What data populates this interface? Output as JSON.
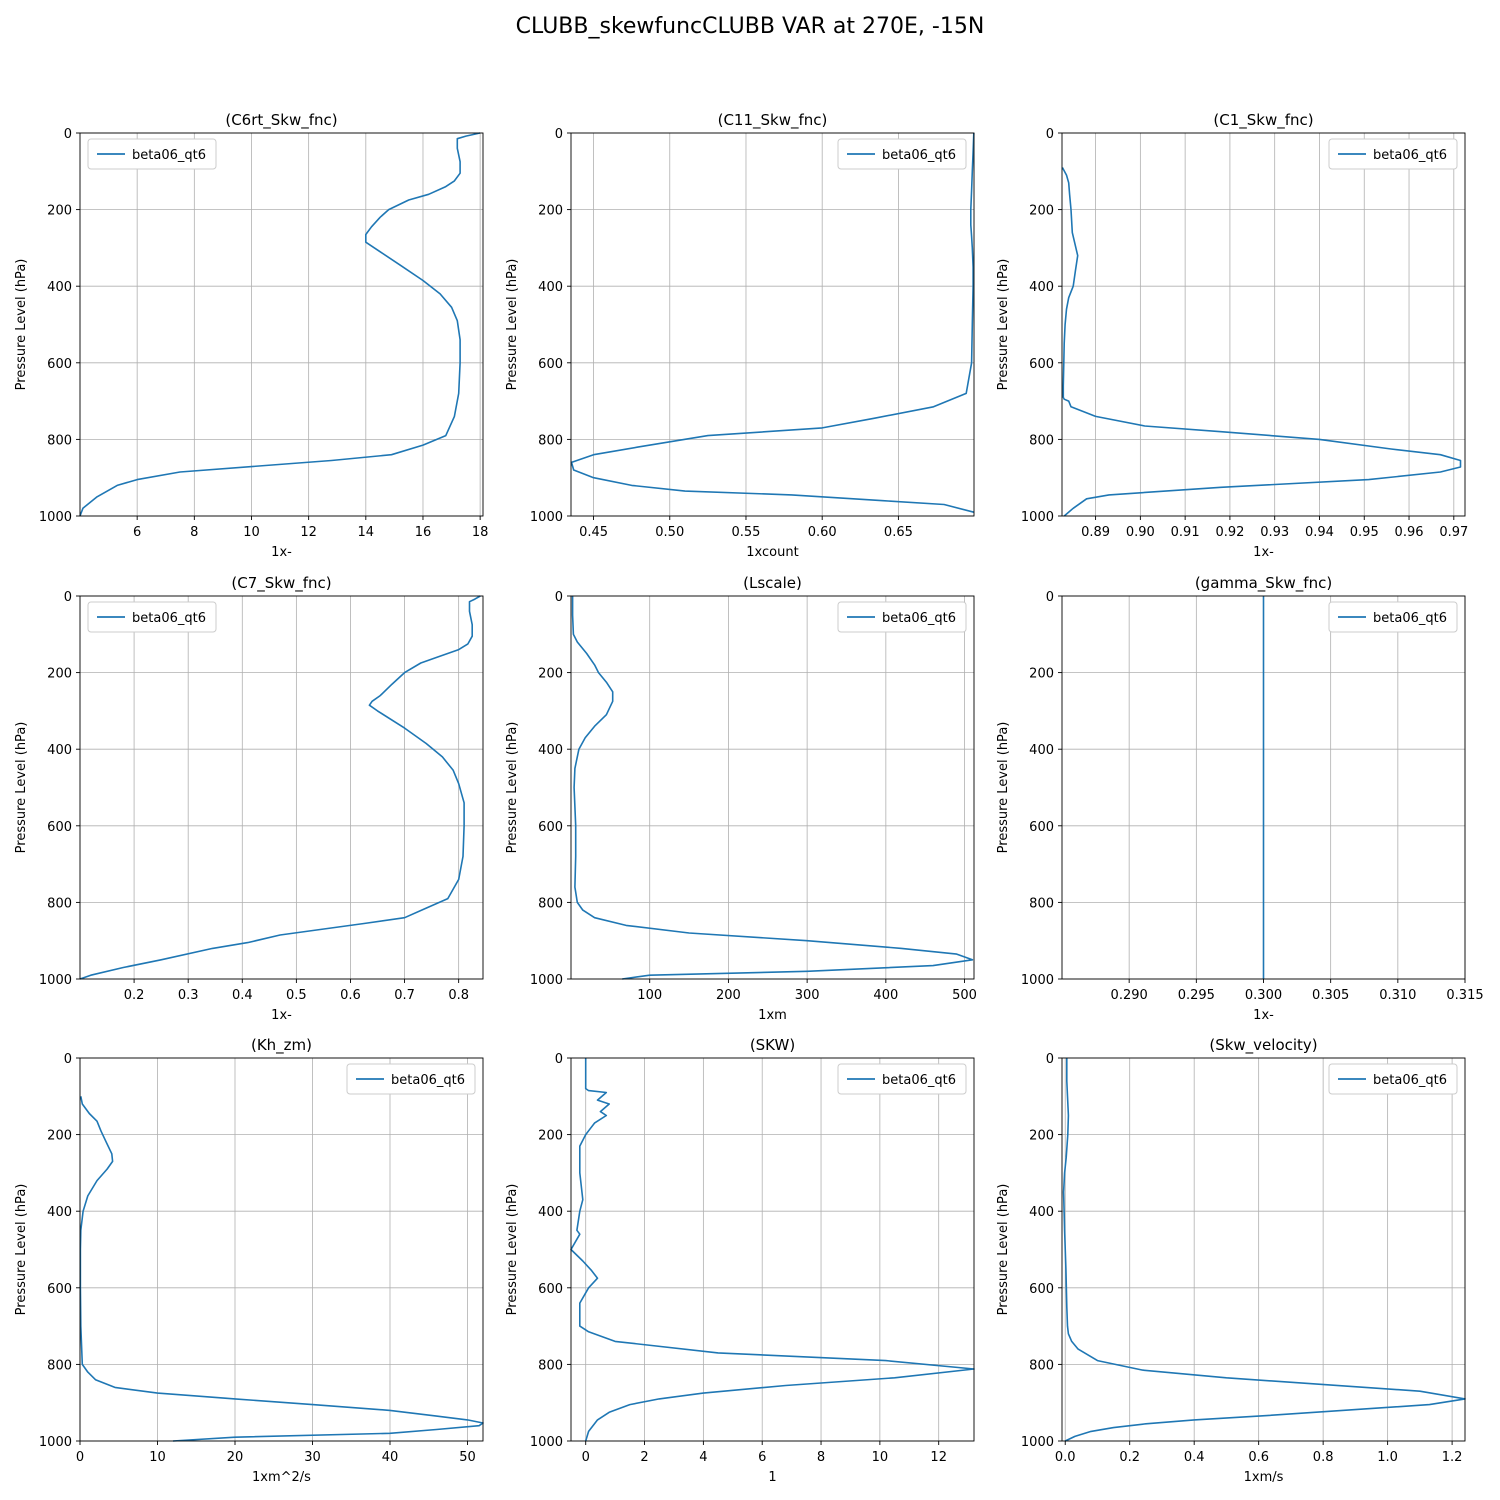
{
  "figure": {
    "title": "CLUBB_skewfuncCLUBB VAR at 270E, -15N"
  },
  "chart_data": [
    {
      "type": "line",
      "title": "(C6rt_Skw_fnc)",
      "xlabel": "1x-",
      "ylabel": "Pressure Level (hPa)",
      "xlim": [
        4.0,
        18.1
      ],
      "xticks": [
        6,
        8,
        10,
        12,
        14,
        16,
        18
      ],
      "xtick_labels": [
        "6",
        "8",
        "10",
        "12",
        "14",
        "16",
        "18"
      ],
      "ylim": [
        1000,
        0
      ],
      "yticks": [
        0,
        200,
        400,
        600,
        800,
        1000
      ],
      "ytick_labels": [
        "0",
        "200",
        "400",
        "600",
        "800",
        "1000"
      ],
      "grid": true,
      "legend": "upper left",
      "series": [
        {
          "name": "beta06_qt6",
          "color": "#1f77b4",
          "x": [
            18.0,
            17.5,
            17.2,
            17.2,
            17.3,
            17.3,
            17.1,
            16.8,
            16.2,
            15.5,
            14.8,
            14.5,
            14.2,
            14.0,
            14.0,
            14.3,
            15.2,
            16.0,
            16.6,
            17.0,
            17.2,
            17.3,
            17.3,
            17.25,
            17.1,
            16.8,
            16.0,
            14.9,
            12.8,
            7.5,
            6.0,
            5.3,
            4.6,
            4.1,
            4.0
          ],
          "y": [
            0,
            8,
            15,
            40,
            75,
            105,
            125,
            140,
            160,
            175,
            200,
            220,
            245,
            265,
            285,
            300,
            345,
            385,
            420,
            455,
            490,
            540,
            600,
            680,
            740,
            790,
            815,
            840,
            855,
            885,
            905,
            920,
            950,
            980,
            1000
          ]
        }
      ]
    },
    {
      "type": "line",
      "title": "(C11_Skw_fnc)",
      "xlabel": "1xcount",
      "ylabel": "Pressure Level (hPa)",
      "xlim": [
        0.4352,
        0.6996
      ],
      "xticks": [
        0.45,
        0.5,
        0.55,
        0.6,
        0.65
      ],
      "xtick_labels": [
        "0.45",
        "0.50",
        "0.55",
        "0.60",
        "0.65"
      ],
      "ylim": [
        1000,
        0
      ],
      "yticks": [
        0,
        200,
        400,
        600,
        800,
        1000
      ],
      "ytick_labels": [
        "0",
        "200",
        "400",
        "600",
        "800",
        "1000"
      ],
      "grid": true,
      "legend": "upper right",
      "series": [
        {
          "name": "beta06_qt6",
          "color": "#1f77b4",
          "x": [
            0.6995,
            0.699,
            0.6985,
            0.698,
            0.6975,
            0.6975,
            0.698,
            0.6985,
            0.699,
            0.699,
            0.6985,
            0.698,
            0.6945,
            0.673,
            0.634,
            0.6,
            0.525,
            0.479,
            0.45,
            0.4355,
            0.437,
            0.45,
            0.475,
            0.51,
            0.58,
            0.64,
            0.68,
            0.6995
          ],
          "y": [
            0,
            50,
            100,
            150,
            200,
            240,
            270,
            300,
            350,
            400,
            500,
            600,
            680,
            715,
            745,
            770,
            790,
            820,
            840,
            860,
            880,
            900,
            920,
            935,
            945,
            960,
            970,
            990
          ]
        }
      ]
    },
    {
      "type": "line",
      "title": "(C1_Skw_fnc)",
      "xlabel": "1x-",
      "ylabel": "Pressure Level (hPa)",
      "xlim": [
        0.8825,
        0.9725
      ],
      "xticks": [
        0.89,
        0.9,
        0.91,
        0.92,
        0.93,
        0.94,
        0.95,
        0.96,
        0.97
      ],
      "xtick_labels": [
        "0.89",
        "0.90",
        "0.91",
        "0.92",
        "0.93",
        "0.94",
        "0.95",
        "0.96",
        "0.97"
      ],
      "ylim": [
        1000,
        0
      ],
      "yticks": [
        0,
        200,
        400,
        600,
        800,
        1000
      ],
      "ytick_labels": [
        "0",
        "200",
        "400",
        "600",
        "800",
        "1000"
      ],
      "grid": true,
      "legend": "upper right",
      "series": [
        {
          "name": "beta06_qt6",
          "color": "#1f77b4",
          "x": [
            0.8826,
            0.8835,
            0.884,
            0.8842,
            0.8845,
            0.8848,
            0.886,
            0.8855,
            0.885,
            0.884,
            0.8835,
            0.8832,
            0.883,
            0.8829,
            0.8828,
            0.8828,
            0.8828,
            0.883,
            0.884,
            0.8845,
            0.89,
            0.901,
            0.918,
            0.94,
            0.956,
            0.967,
            0.9715,
            0.9715,
            0.967,
            0.951,
            0.918,
            0.893,
            0.888,
            0.885,
            0.883
          ],
          "y": [
            90,
            110,
            130,
            160,
            200,
            260,
            320,
            360,
            400,
            430,
            460,
            500,
            550,
            600,
            660,
            680,
            690,
            695,
            700,
            715,
            740,
            765,
            780,
            800,
            825,
            840,
            855,
            872,
            885,
            905,
            925,
            945,
            955,
            980,
            1000
          ]
        }
      ]
    },
    {
      "type": "line",
      "title": "(C7_Skw_fnc)",
      "xlabel": "1x-",
      "ylabel": "Pressure Level (hPa)",
      "xlim": [
        0.1,
        0.845
      ],
      "xticks": [
        0.2,
        0.3,
        0.4,
        0.5,
        0.6,
        0.7,
        0.8
      ],
      "xtick_labels": [
        "0.2",
        "0.3",
        "0.4",
        "0.5",
        "0.6",
        "0.7",
        "0.8"
      ],
      "ylim": [
        1000,
        0
      ],
      "yticks": [
        0,
        200,
        400,
        600,
        800,
        1000
      ],
      "ytick_labels": [
        "0",
        "200",
        "400",
        "600",
        "800",
        "1000"
      ],
      "grid": true,
      "legend": "upper left",
      "series": [
        {
          "name": "beta06_qt6",
          "color": "#1f77b4",
          "x": [
            0.84,
            0.83,
            0.82,
            0.82,
            0.825,
            0.825,
            0.817,
            0.8,
            0.76,
            0.73,
            0.7,
            0.677,
            0.655,
            0.64,
            0.635,
            0.65,
            0.7,
            0.74,
            0.77,
            0.79,
            0.8,
            0.81,
            0.81,
            0.808,
            0.8,
            0.78,
            0.74,
            0.7,
            0.625,
            0.47,
            0.41,
            0.345,
            0.25,
            0.18,
            0.12,
            0.1
          ],
          "y": [
            0,
            8,
            15,
            40,
            75,
            105,
            125,
            140,
            160,
            175,
            200,
            230,
            260,
            275,
            285,
            300,
            345,
            385,
            420,
            455,
            490,
            540,
            600,
            680,
            740,
            790,
            815,
            840,
            855,
            885,
            905,
            920,
            950,
            970,
            990,
            1000
          ]
        }
      ]
    },
    {
      "type": "line",
      "title": "(Lscale)",
      "xlabel": "1xm",
      "ylabel": "Pressure Level (hPa)",
      "xlim": [
        0,
        512
      ],
      "xticks": [
        100,
        200,
        300,
        400,
        500
      ],
      "xtick_labels": [
        "100",
        "200",
        "300",
        "400",
        "500"
      ],
      "ylim": [
        1000,
        0
      ],
      "yticks": [
        0,
        200,
        400,
        600,
        800,
        1000
      ],
      "ytick_labels": [
        "0",
        "200",
        "400",
        "600",
        "800",
        "1000"
      ],
      "grid": true,
      "legend": "upper right",
      "series": [
        {
          "name": "beta06_qt6",
          "color": "#1f77b4",
          "x": [
            2,
            2,
            3,
            8,
            20,
            30,
            35,
            45,
            53,
            53,
            45,
            30,
            18,
            10,
            5,
            4,
            5,
            6,
            6,
            5,
            8,
            15,
            30,
            70,
            150,
            300,
            420,
            490,
            510,
            460,
            300,
            100,
            65
          ],
          "y": [
            0,
            50,
            100,
            120,
            150,
            180,
            200,
            225,
            250,
            275,
            310,
            340,
            370,
            400,
            450,
            500,
            550,
            600,
            680,
            760,
            800,
            820,
            840,
            860,
            880,
            900,
            920,
            935,
            950,
            965,
            980,
            990,
            1000
          ]
        }
      ]
    },
    {
      "type": "line",
      "title": "(gamma_Skw_fnc)",
      "xlabel": "1x-",
      "ylabel": "Pressure Level (hPa)",
      "xlim": [
        0.285,
        0.315
      ],
      "xticks": [
        0.29,
        0.295,
        0.3,
        0.305,
        0.31,
        0.315
      ],
      "xtick_labels": [
        "0.290",
        "0.295",
        "0.300",
        "0.305",
        "0.310",
        "0.315"
      ],
      "ylim": [
        1000,
        0
      ],
      "yticks": [
        0,
        200,
        400,
        600,
        800,
        1000
      ],
      "ytick_labels": [
        "0",
        "200",
        "400",
        "600",
        "800",
        "1000"
      ],
      "grid": true,
      "legend": "upper right",
      "series": [
        {
          "name": "beta06_qt6",
          "color": "#1f77b4",
          "x": [
            0.3,
            0.3
          ],
          "y": [
            0,
            1000
          ]
        }
      ]
    },
    {
      "type": "line",
      "title": "(Kh_zm)",
      "xlabel": "1xm^2/s",
      "ylabel": "Pressure Level (hPa)",
      "xlim": [
        0,
        52
      ],
      "xticks": [
        0,
        10,
        20,
        30,
        40,
        50
      ],
      "xtick_labels": [
        "0",
        "10",
        "20",
        "30",
        "40",
        "50"
      ],
      "ylim": [
        1000,
        0
      ],
      "yticks": [
        0,
        200,
        400,
        600,
        800,
        1000
      ],
      "ytick_labels": [
        "0",
        "200",
        "400",
        "600",
        "800",
        "1000"
      ],
      "grid": true,
      "legend": "upper right",
      "series": [
        {
          "name": "beta06_qt6",
          "color": "#1f77b4",
          "x": [
            0.1,
            0.3,
            1.2,
            2.2,
            2.7,
            3.4,
            4.1,
            4.2,
            3.5,
            2.2,
            1.0,
            0.4,
            0.1,
            0.05,
            0.05,
            0.1,
            0.3,
            1.0,
            2.0,
            4.5,
            10,
            20,
            30,
            40,
            46,
            50,
            52,
            51.5,
            46,
            40,
            20,
            12
          ],
          "y": [
            100,
            120,
            145,
            165,
            190,
            220,
            250,
            270,
            290,
            320,
            360,
            400,
            450,
            500,
            600,
            700,
            800,
            820,
            840,
            860,
            875,
            890,
            905,
            920,
            935,
            945,
            953,
            960,
            970,
            980,
            990,
            1000
          ]
        }
      ]
    },
    {
      "type": "line",
      "title": "(SKW)",
      "xlabel": "1",
      "ylabel": "Pressure Level (hPa)",
      "xlim": [
        -0.5,
        13.2
      ],
      "xticks": [
        0,
        2,
        4,
        6,
        8,
        10,
        12
      ],
      "xtick_labels": [
        "0",
        "2",
        "4",
        "6",
        "8",
        "10",
        "12"
      ],
      "ylim": [
        1000,
        0
      ],
      "yticks": [
        0,
        200,
        400,
        600,
        800,
        1000
      ],
      "ytick_labels": [
        "0",
        "200",
        "400",
        "600",
        "800",
        "1000"
      ],
      "grid": true,
      "legend": "upper right",
      "series": [
        {
          "name": "beta06_qt6",
          "color": "#1f77b4",
          "x": [
            0.0,
            0.0,
            0.1,
            0.7,
            0.4,
            0.8,
            0.5,
            0.7,
            0.3,
            0.1,
            0.0,
            -0.2,
            -0.2,
            -0.1,
            -0.2,
            -0.3,
            -0.2,
            -0.5,
            -0.1,
            0.2,
            0.4,
            0.1,
            -0.2,
            -0.2,
            0.1,
            1.0,
            4.5,
            10.2,
            13.2,
            10.5,
            6.8,
            4.0,
            2.5,
            1.5,
            0.8,
            0.4,
            0.1,
            0.0
          ],
          "y": [
            0,
            80,
            85,
            90,
            110,
            120,
            140,
            150,
            170,
            190,
            200,
            230,
            300,
            370,
            400,
            450,
            460,
            500,
            530,
            555,
            575,
            600,
            640,
            700,
            715,
            740,
            770,
            790,
            812,
            835,
            855,
            875,
            890,
            905,
            925,
            945,
            975,
            1000
          ]
        }
      ]
    },
    {
      "type": "line",
      "title": "(Skw_velocity)",
      "xlabel": "1xm/s",
      "ylabel": "Pressure Level (hPa)",
      "xlim": [
        -0.01,
        1.24
      ],
      "xticks": [
        0.0,
        0.2,
        0.4,
        0.6,
        0.8,
        1.0,
        1.2
      ],
      "xtick_labels": [
        "0.0",
        "0.2",
        "0.4",
        "0.6",
        "0.8",
        "1.0",
        "1.2"
      ],
      "ylim": [
        1000,
        0
      ],
      "yticks": [
        0,
        200,
        400,
        600,
        800,
        1000
      ],
      "ytick_labels": [
        "0",
        "200",
        "400",
        "600",
        "800",
        "1000"
      ],
      "grid": true,
      "legend": "upper right",
      "series": [
        {
          "name": "beta06_qt6",
          "color": "#1f77b4",
          "x": [
            0.005,
            0.005,
            0.007,
            0.01,
            0.008,
            0.003,
            -0.002,
            -0.005,
            -0.002,
            0.002,
            0.005,
            0.007,
            0.01,
            0.02,
            0.04,
            0.1,
            0.24,
            0.5,
            1.1,
            1.24,
            1.13,
            0.6,
            0.4,
            0.25,
            0.15,
            0.08,
            0.03,
            0.0
          ],
          "y": [
            0,
            60,
            100,
            150,
            200,
            260,
            300,
            350,
            450,
            550,
            650,
            700,
            720,
            740,
            760,
            790,
            815,
            835,
            870,
            890,
            905,
            935,
            945,
            955,
            965,
            975,
            988,
            1000
          ]
        }
      ]
    }
  ]
}
